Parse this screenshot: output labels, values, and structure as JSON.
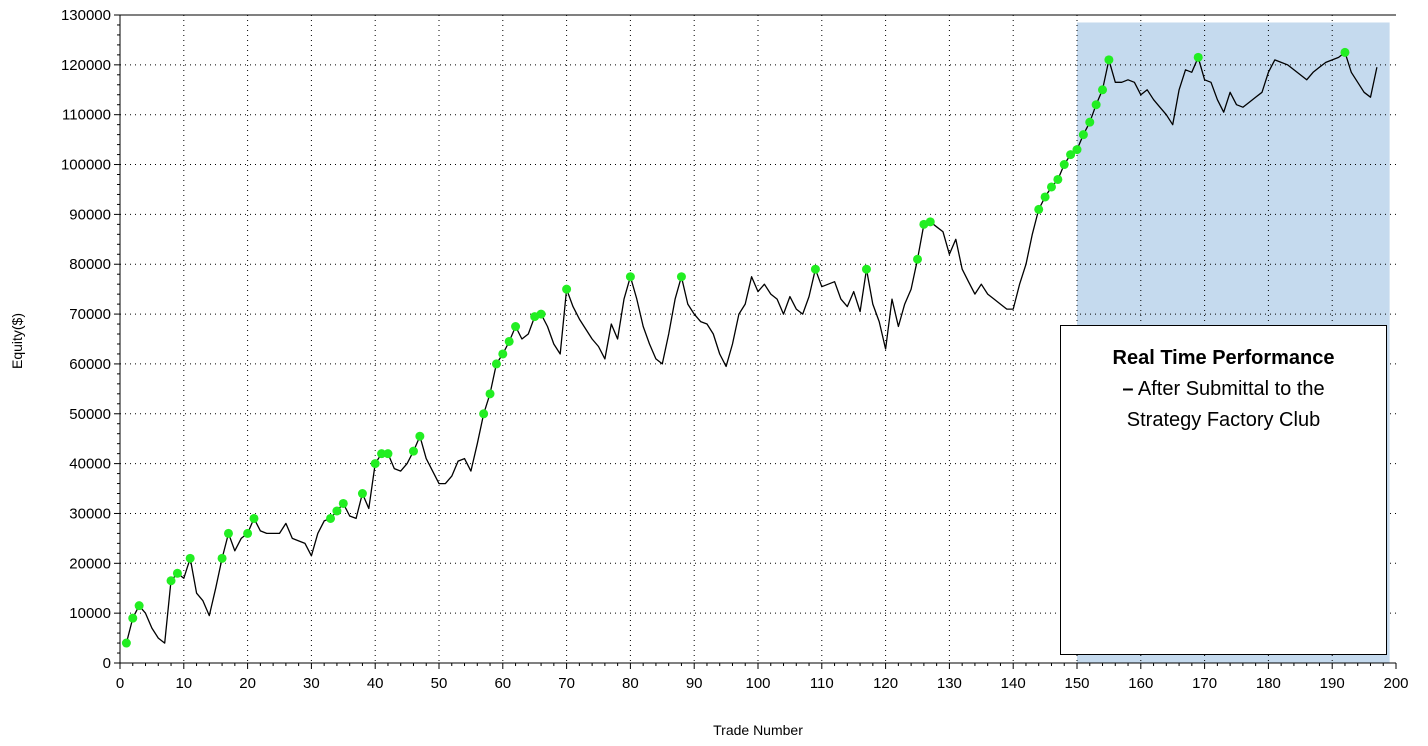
{
  "chart_data": {
    "type": "line",
    "xlabel": "Trade Number",
    "ylabel": "Equity($)",
    "xlim": [
      0,
      200
    ],
    "ylim": [
      0,
      130000
    ],
    "x_ticks": [
      0,
      10,
      20,
      30,
      40,
      50,
      60,
      70,
      80,
      90,
      100,
      110,
      120,
      130,
      140,
      150,
      160,
      170,
      180,
      190,
      200
    ],
    "y_ticks": [
      0,
      10000,
      20000,
      30000,
      40000,
      50000,
      60000,
      70000,
      80000,
      90000,
      100000,
      110000,
      120000,
      130000
    ],
    "grid": true,
    "colors": {
      "line": "#000000",
      "marker": "#22ee22",
      "shade": "#c5daee"
    },
    "highlight_region": {
      "x_start": 150,
      "x_end": 199,
      "y_top": 128500
    },
    "annotation": {
      "title": "Real Time Performance",
      "dash": "–",
      "line1": " After Submittal to the",
      "line2": "Strategy Factory Club"
    },
    "series": [
      {
        "values": [
          [
            1,
            4000
          ],
          [
            2,
            9000
          ],
          [
            3,
            11500
          ],
          [
            4,
            10000
          ],
          [
            5,
            7000
          ],
          [
            6,
            5000
          ],
          [
            7,
            4000
          ],
          [
            8,
            16500
          ],
          [
            9,
            18000
          ],
          [
            10,
            17000
          ],
          [
            11,
            21000
          ],
          [
            12,
            14000
          ],
          [
            13,
            12500
          ],
          [
            14,
            9500
          ],
          [
            15,
            15000
          ],
          [
            16,
            21000
          ],
          [
            17,
            26000
          ],
          [
            18,
            22500
          ],
          [
            19,
            25000
          ],
          [
            20,
            26000
          ],
          [
            21,
            29000
          ],
          [
            22,
            26500
          ],
          [
            23,
            26000
          ],
          [
            24,
            26000
          ],
          [
            25,
            26000
          ],
          [
            26,
            28000
          ],
          [
            27,
            25000
          ],
          [
            28,
            24500
          ],
          [
            29,
            24000
          ],
          [
            30,
            21500
          ],
          [
            31,
            26000
          ],
          [
            32,
            28500
          ],
          [
            33,
            29000
          ],
          [
            34,
            30500
          ],
          [
            35,
            32000
          ],
          [
            36,
            29500
          ],
          [
            37,
            29000
          ],
          [
            38,
            34000
          ],
          [
            39,
            31000
          ],
          [
            40,
            40000
          ],
          [
            41,
            42000
          ],
          [
            42,
            42000
          ],
          [
            43,
            39000
          ],
          [
            44,
            38500
          ],
          [
            45,
            40000
          ],
          [
            46,
            42500
          ],
          [
            47,
            45500
          ],
          [
            48,
            41000
          ],
          [
            49,
            38500
          ],
          [
            50,
            36000
          ],
          [
            51,
            36000
          ],
          [
            52,
            37500
          ],
          [
            53,
            40500
          ],
          [
            54,
            41000
          ],
          [
            55,
            38500
          ],
          [
            56,
            44000
          ],
          [
            57,
            50000
          ],
          [
            58,
            54000
          ],
          [
            59,
            60000
          ],
          [
            60,
            62000
          ],
          [
            61,
            64500
          ],
          [
            62,
            67500
          ],
          [
            63,
            65000
          ],
          [
            64,
            66000
          ],
          [
            65,
            69500
          ],
          [
            66,
            70000
          ],
          [
            67,
            67500
          ],
          [
            68,
            64000
          ],
          [
            69,
            62000
          ],
          [
            70,
            75000
          ],
          [
            71,
            71500
          ],
          [
            72,
            69000
          ],
          [
            73,
            67000
          ],
          [
            74,
            65000
          ],
          [
            75,
            63500
          ],
          [
            76,
            61000
          ],
          [
            77,
            68000
          ],
          [
            78,
            65000
          ],
          [
            79,
            73000
          ],
          [
            80,
            77500
          ],
          [
            81,
            73000
          ],
          [
            82,
            67500
          ],
          [
            83,
            64000
          ],
          [
            84,
            61000
          ],
          [
            85,
            60000
          ],
          [
            86,
            66000
          ],
          [
            87,
            73000
          ],
          [
            88,
            77500
          ],
          [
            89,
            72000
          ],
          [
            90,
            70000
          ],
          [
            91,
            68500
          ],
          [
            92,
            68000
          ],
          [
            93,
            66000
          ],
          [
            94,
            62000
          ],
          [
            95,
            59500
          ],
          [
            96,
            64000
          ],
          [
            97,
            70000
          ],
          [
            98,
            72000
          ],
          [
            99,
            77500
          ],
          [
            100,
            74500
          ],
          [
            101,
            76000
          ],
          [
            102,
            74000
          ],
          [
            103,
            73000
          ],
          [
            104,
            70000
          ],
          [
            105,
            73500
          ],
          [
            106,
            71000
          ],
          [
            107,
            70000
          ],
          [
            108,
            73500
          ],
          [
            109,
            79000
          ],
          [
            110,
            75500
          ],
          [
            111,
            76000
          ],
          [
            112,
            76500
          ],
          [
            113,
            73000
          ],
          [
            114,
            71500
          ],
          [
            115,
            74500
          ],
          [
            116,
            70500
          ],
          [
            117,
            79000
          ],
          [
            118,
            72000
          ],
          [
            119,
            68500
          ],
          [
            120,
            63000
          ],
          [
            121,
            73000
          ],
          [
            122,
            67500
          ],
          [
            123,
            72000
          ],
          [
            124,
            75000
          ],
          [
            125,
            81000
          ],
          [
            126,
            88000
          ],
          [
            127,
            88500
          ],
          [
            128,
            87500
          ],
          [
            129,
            86500
          ],
          [
            130,
            82000
          ],
          [
            131,
            85000
          ],
          [
            132,
            79000
          ],
          [
            133,
            76500
          ],
          [
            134,
            74000
          ],
          [
            135,
            76000
          ],
          [
            136,
            74000
          ],
          [
            137,
            73000
          ],
          [
            138,
            72000
          ],
          [
            139,
            71000
          ],
          [
            140,
            71000
          ],
          [
            141,
            76000
          ],
          [
            142,
            80000
          ],
          [
            143,
            86000
          ],
          [
            144,
            91000
          ],
          [
            145,
            93500
          ],
          [
            146,
            95500
          ],
          [
            147,
            97000
          ],
          [
            148,
            100000
          ],
          [
            149,
            102000
          ],
          [
            150,
            103000
          ],
          [
            151,
            106000
          ],
          [
            152,
            108500
          ],
          [
            153,
            112000
          ],
          [
            154,
            115000
          ],
          [
            155,
            121000
          ],
          [
            156,
            116500
          ],
          [
            157,
            116500
          ],
          [
            158,
            117000
          ],
          [
            159,
            116500
          ],
          [
            160,
            114000
          ],
          [
            161,
            115000
          ],
          [
            162,
            113000
          ],
          [
            163,
            111500
          ],
          [
            164,
            110000
          ],
          [
            165,
            108000
          ],
          [
            166,
            115000
          ],
          [
            167,
            119000
          ],
          [
            168,
            118500
          ],
          [
            169,
            121500
          ],
          [
            170,
            117000
          ],
          [
            171,
            116500
          ],
          [
            172,
            113000
          ],
          [
            173,
            110500
          ],
          [
            174,
            114500
          ],
          [
            175,
            112000
          ],
          [
            176,
            111500
          ],
          [
            177,
            112500
          ],
          [
            178,
            113500
          ],
          [
            179,
            114500
          ],
          [
            180,
            118500
          ],
          [
            181,
            121000
          ],
          [
            182,
            120500
          ],
          [
            183,
            120000
          ],
          [
            184,
            119000
          ],
          [
            185,
            118000
          ],
          [
            186,
            117000
          ],
          [
            187,
            118500
          ],
          [
            188,
            119500
          ],
          [
            189,
            120500
          ],
          [
            190,
            121000
          ],
          [
            191,
            121500
          ],
          [
            192,
            122500
          ],
          [
            193,
            118500
          ],
          [
            194,
            116500
          ],
          [
            195,
            114500
          ],
          [
            196,
            113500
          ],
          [
            197,
            119500
          ]
        ]
      }
    ],
    "markers": [
      [
        1,
        4000
      ],
      [
        2,
        9000
      ],
      [
        3,
        11500
      ],
      [
        8,
        16500
      ],
      [
        9,
        18000
      ],
      [
        11,
        21000
      ],
      [
        16,
        21000
      ],
      [
        17,
        26000
      ],
      [
        20,
        26000
      ],
      [
        21,
        29000
      ],
      [
        33,
        29000
      ],
      [
        34,
        30500
      ],
      [
        35,
        32000
      ],
      [
        38,
        34000
      ],
      [
        40,
        40000
      ],
      [
        41,
        42000
      ],
      [
        42,
        42000
      ],
      [
        46,
        42500
      ],
      [
        47,
        45500
      ],
      [
        57,
        50000
      ],
      [
        58,
        54000
      ],
      [
        59,
        60000
      ],
      [
        60,
        62000
      ],
      [
        61,
        64500
      ],
      [
        62,
        67500
      ],
      [
        65,
        69500
      ],
      [
        66,
        70000
      ],
      [
        70,
        75000
      ],
      [
        80,
        77500
      ],
      [
        88,
        77500
      ],
      [
        109,
        79000
      ],
      [
        117,
        79000
      ],
      [
        125,
        81000
      ],
      [
        126,
        88000
      ],
      [
        127,
        88500
      ],
      [
        144,
        91000
      ],
      [
        145,
        93500
      ],
      [
        146,
        95500
      ],
      [
        147,
        97000
      ],
      [
        148,
        100000
      ],
      [
        149,
        102000
      ],
      [
        150,
        103000
      ],
      [
        151,
        106000
      ],
      [
        152,
        108500
      ],
      [
        153,
        112000
      ],
      [
        154,
        115000
      ],
      [
        155,
        121000
      ],
      [
        169,
        121500
      ],
      [
        192,
        122500
      ]
    ]
  }
}
